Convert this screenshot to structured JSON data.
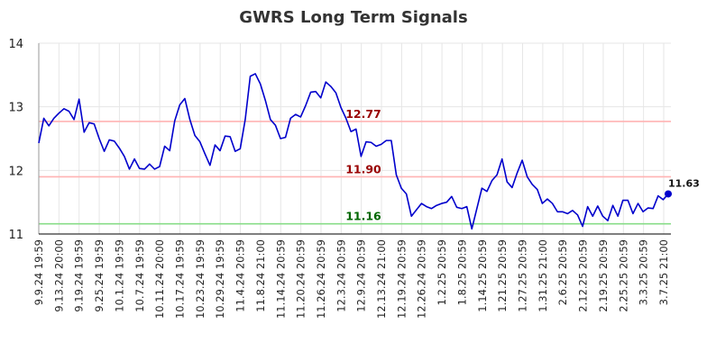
{
  "chart_data": {
    "type": "line",
    "title": "GWRS Long Term Signals",
    "xlabel": "",
    "ylabel": "",
    "ylim": [
      11,
      14
    ],
    "yticks": [
      "11",
      "12",
      "13",
      "14"
    ],
    "grid": true,
    "xtick_labels": [
      "9.9.24 19:59",
      "9.13.24 20:00",
      "9.19.24 19:59",
      "9.25.24 19:59",
      "10.1.24 19:59",
      "10.7.24 19:59",
      "10.11.24 20:00",
      "10.17.24 19:59",
      "10.23.24 19:59",
      "10.29.24 19:59",
      "11.4.24 20:59",
      "11.8.24 21:00",
      "11.14.24 20:59",
      "11.20.24 20:59",
      "11.26.24 20:59",
      "12.3.24 20:59",
      "12.9.24 20:59",
      "12.13.24 21:00",
      "12.19.24 20:59",
      "12.26.24 20:59",
      "1.2.25 20:59",
      "1.8.25 20:59",
      "1.14.25 20:59",
      "1.21.25 20:59",
      "1.27.25 20:59",
      "1.31.25 21:00",
      "2.6.25 20:59",
      "2.12.25 20:59",
      "2.19.25 20:59",
      "2.25.25 20:59",
      "3.3.25 20:59",
      "3.7.25 21:00"
    ],
    "series": [
      {
        "color": "#0000cc",
        "values": [
          12.43,
          12.82,
          12.7,
          12.82,
          12.9,
          12.97,
          12.93,
          12.8,
          13.12,
          12.6,
          12.75,
          12.73,
          12.5,
          12.3,
          12.48,
          12.46,
          12.35,
          12.22,
          12.02,
          12.18,
          12.03,
          12.02,
          12.1,
          12.02,
          12.06,
          12.38,
          12.31,
          12.78,
          13.03,
          13.13,
          12.8,
          12.55,
          12.45,
          12.26,
          12.08,
          12.4,
          12.31,
          12.54,
          12.53,
          12.3,
          12.34,
          12.8,
          13.48,
          13.52,
          13.36,
          13.1,
          12.8,
          12.71,
          12.5,
          12.52,
          12.82,
          12.88,
          12.84,
          13.02,
          13.23,
          13.24,
          13.14,
          13.39,
          13.32,
          13.22,
          12.99,
          12.82,
          12.61,
          12.65,
          12.22,
          12.45,
          12.44,
          12.38,
          12.41,
          12.47,
          12.47,
          11.93,
          11.72,
          11.63,
          11.28,
          11.38,
          11.48,
          11.43,
          11.4,
          11.45,
          11.48,
          11.5,
          11.59,
          11.42,
          11.4,
          11.43,
          11.08,
          11.4,
          11.72,
          11.67,
          11.84,
          11.93,
          12.18,
          11.82,
          11.73,
          11.96,
          12.16,
          11.9,
          11.78,
          11.7,
          11.48,
          11.55,
          11.48,
          11.35,
          11.35,
          11.32,
          11.37,
          11.3,
          11.12,
          11.43,
          11.28,
          11.44,
          11.28,
          11.21,
          11.45,
          11.28,
          11.53,
          11.53,
          11.32,
          11.48,
          11.35,
          11.41,
          11.4,
          11.6,
          11.54,
          11.63
        ]
      }
    ],
    "levels": [
      {
        "label": "12.77",
        "value": 12.77,
        "line_color": "#ffb3b3",
        "text_color": "#990000"
      },
      {
        "label": "11.90",
        "value": 11.9,
        "line_color": "#ffb3b3",
        "text_color": "#990000"
      },
      {
        "label": "11.16",
        "value": 11.16,
        "line_color": "#88dd88",
        "text_color": "#006600"
      }
    ],
    "last_value_label": "11.63"
  }
}
